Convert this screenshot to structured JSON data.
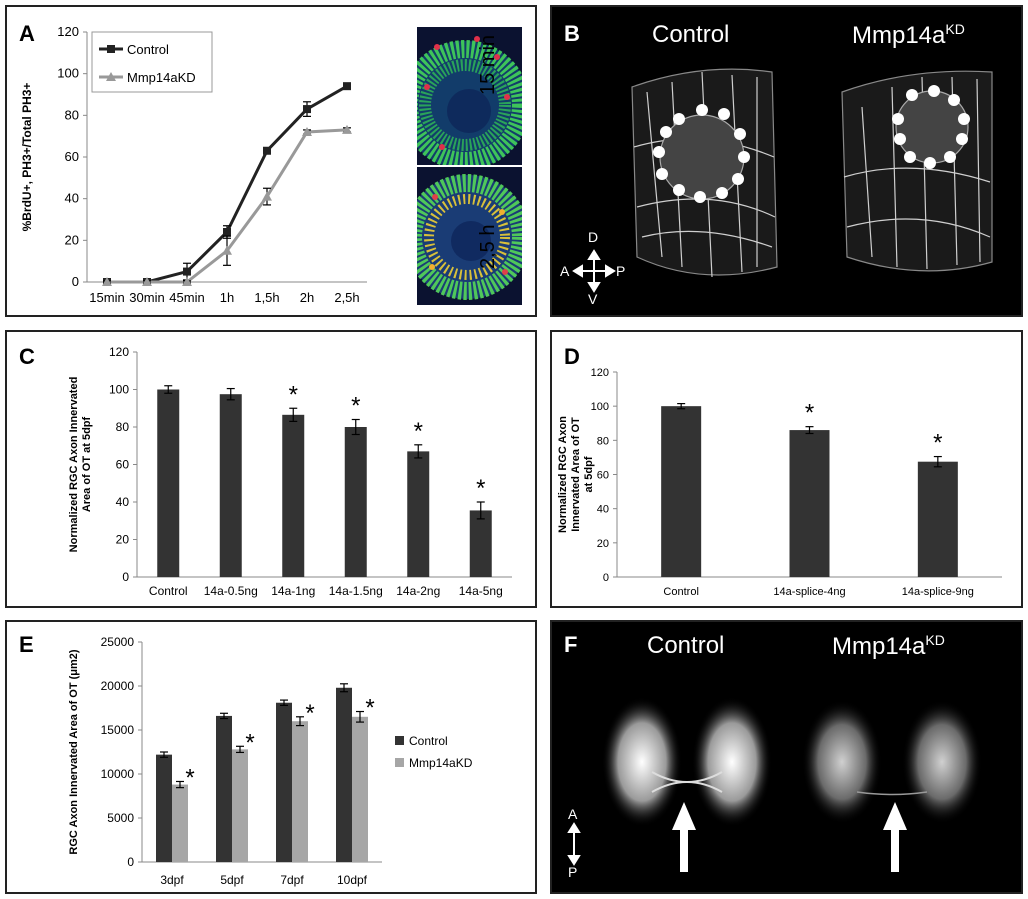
{
  "panels": {
    "A": {
      "label": "A",
      "image_labels": [
        "15 min",
        "2,5 h"
      ]
    },
    "B": {
      "label": "B",
      "titles": [
        {
          "text": "Control",
          "sup": ""
        },
        {
          "text": "Mmp14a",
          "sup": "KD"
        }
      ],
      "compass": {
        "top": "D",
        "left": "A",
        "right": "P",
        "bottom": "V"
      }
    },
    "C": {
      "label": "C"
    },
    "D": {
      "label": "D"
    },
    "E": {
      "label": "E"
    },
    "F": {
      "label": "F",
      "titles": [
        {
          "text": "Control",
          "sup": ""
        },
        {
          "text": "Mmp14a",
          "sup": "KD"
        }
      ],
      "compass": {
        "top": "A",
        "bottom": "P"
      }
    }
  },
  "chart_data": [
    {
      "id": "A",
      "type": "line",
      "ylabel": "%BrdU+, PH3+/Total PH3+",
      "categories": [
        "15min",
        "30min",
        "45min",
        "1h",
        "1,5h",
        "2h",
        "2,5h"
      ],
      "ylim": [
        0,
        120
      ],
      "yticks": [
        0,
        20,
        40,
        60,
        80,
        100,
        120
      ],
      "legend": "top-left",
      "series": [
        {
          "name": "Control",
          "color": "#222222",
          "values": [
            0,
            0,
            5,
            24,
            63,
            83,
            94
          ],
          "errors": [
            0.5,
            0.5,
            4,
            3,
            1,
            3.5,
            1
          ]
        },
        {
          "name": "Mmp14aKD",
          "color": "#999999",
          "values": [
            0,
            0,
            0,
            15,
            41,
            72,
            73
          ],
          "errors": [
            0.5,
            0.5,
            0.5,
            7,
            4,
            1,
            1
          ]
        }
      ]
    },
    {
      "id": "C",
      "type": "bar",
      "ylabel": "Normalized RGC Axon Innervated Area of OT at 5dpf",
      "categories": [
        "Control",
        "14a-0.5ng",
        "14a-1ng",
        "14a-1.5ng",
        "14a-2ng",
        "14a-5ng"
      ],
      "values": [
        100,
        97.5,
        86.5,
        80,
        67,
        35.5
      ],
      "errors": [
        2,
        3,
        3.5,
        4,
        3.5,
        4.5
      ],
      "significant": [
        false,
        false,
        true,
        true,
        true,
        true
      ],
      "star": "*",
      "ylim": [
        0,
        120
      ],
      "yticks": [
        0,
        20,
        40,
        60,
        80,
        100,
        120
      ]
    },
    {
      "id": "D",
      "type": "bar",
      "ylabel": "Normalized RGC Axon Innervated Area of OT at 5dpf",
      "categories": [
        "Control",
        "14a-splice-4ng",
        "14a-splice-9ng"
      ],
      "values": [
        100,
        86,
        67.5
      ],
      "errors": [
        1.5,
        2,
        3
      ],
      "significant": [
        false,
        true,
        true
      ],
      "star": "*",
      "ylim": [
        0,
        120
      ],
      "yticks": [
        0,
        20,
        40,
        60,
        80,
        100,
        120
      ]
    },
    {
      "id": "E",
      "type": "bar",
      "ylabel": "RGC Axon Innervated Area of  OT (μm2)",
      "categories": [
        "3dpf",
        "5dpf",
        "7dpf",
        "10dpf"
      ],
      "ylim": [
        0,
        25000
      ],
      "yticks": [
        0,
        5000,
        10000,
        15000,
        20000,
        25000
      ],
      "legend": "right",
      "star": "*",
      "series": [
        {
          "name": "Control",
          "color": "#333333",
          "values": [
            12200,
            16600,
            18100,
            19800
          ],
          "errors": [
            300,
            300,
            300,
            450
          ]
        },
        {
          "name": "Mmp14aKD",
          "color": "#a6a6a6",
          "values": [
            8800,
            12800,
            16000,
            16500
          ],
          "errors": [
            350,
            350,
            500,
            600
          ],
          "significant": [
            true,
            true,
            true,
            true
          ]
        }
      ]
    }
  ]
}
